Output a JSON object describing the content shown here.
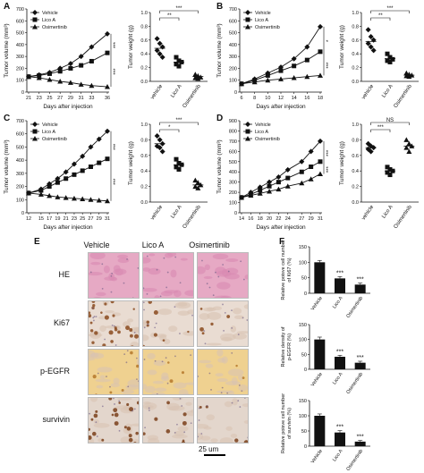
{
  "panels": {
    "A": {
      "label": "A"
    },
    "B": {
      "label": "B"
    },
    "C": {
      "label": "C"
    },
    "D": {
      "label": "D"
    },
    "E": {
      "label": "E"
    },
    "F": {
      "label": "F"
    }
  },
  "legend": [
    "Vehicle",
    "Lico A",
    "Osimertinib"
  ],
  "tumor_volume_ylabel": "Tumor volume (mm³)",
  "tumor_weight_ylabel": "Tumor weight (g)",
  "days_xlabel": "Days after injection",
  "groups_a": [
    "vehicle",
    "Lico A",
    "Osimertinib"
  ],
  "ihc": {
    "columns": [
      "Vehicle",
      "Lico A",
      "Osimertinib"
    ],
    "rows": [
      "HE",
      "Ki67",
      "p-EGFR",
      "survivin"
    ],
    "scale_bar": "25 um",
    "colors": {
      "he": "#e6a9c4",
      "ki67": "#e9dcd2",
      "pegfr": "#efd190",
      "surv": "#e3d6cc"
    }
  },
  "chart_data": [
    {
      "id": "A-line",
      "type": "line",
      "x": [
        21,
        23,
        25,
        27,
        29,
        31,
        33,
        36
      ],
      "xticks": [
        21,
        23,
        25,
        27,
        29,
        31,
        33,
        36
      ],
      "ylim": [
        0,
        700
      ],
      "yticks": [
        0,
        100,
        200,
        300,
        400,
        500,
        600,
        700
      ],
      "xlabel": "Days after injection",
      "ylabel": "Tumor volume (mm³)",
      "series": [
        {
          "name": "Vehicle",
          "marker": "diamond",
          "values": [
            130,
            145,
            165,
            200,
            240,
            300,
            380,
            490
          ]
        },
        {
          "name": "Lico A",
          "marker": "square",
          "values": [
            130,
            140,
            155,
            175,
            200,
            225,
            260,
            330
          ]
        },
        {
          "name": "Osimertinib",
          "marker": "triangle",
          "values": [
            130,
            120,
            105,
            90,
            80,
            65,
            55,
            45
          ]
        }
      ],
      "significance": [
        "***",
        "***"
      ]
    },
    {
      "id": "A-dot",
      "type": "scatter",
      "categories": [
        "vehicle",
        "Lico A",
        "Osimertinib"
      ],
      "ylim": [
        0,
        1.0
      ],
      "yticks": [
        0,
        0.2,
        0.4,
        0.6,
        0.8,
        1.0
      ],
      "ylabel": "Tumor weight (g)",
      "points": [
        [
          0.62,
          0.55,
          0.5,
          0.45,
          0.4,
          0.35
        ],
        [
          0.35,
          0.3,
          0.28,
          0.25,
          0.22
        ],
        [
          0.1,
          0.08,
          0.06,
          0.05,
          0.04
        ]
      ],
      "means": [
        0.48,
        0.28,
        0.07
      ],
      "brackets": [
        {
          "from": 0,
          "to": 1,
          "label": "**"
        },
        {
          "from": 0,
          "to": 2,
          "label": "***"
        }
      ]
    },
    {
      "id": "B-line",
      "type": "line",
      "x": [
        6,
        8,
        10,
        12,
        14,
        16,
        18
      ],
      "xticks": [
        6,
        8,
        10,
        12,
        14,
        16,
        18
      ],
      "ylim": [
        0,
        700
      ],
      "yticks": [
        0,
        100,
        200,
        300,
        400,
        500,
        600,
        700
      ],
      "xlabel": "Days after injection",
      "ylabel": "Tumor volume (mm³)",
      "series": [
        {
          "name": "Vehicle",
          "marker": "diamond",
          "values": [
            70,
            110,
            160,
            210,
            280,
            380,
            550
          ]
        },
        {
          "name": "Lico A",
          "marker": "square",
          "values": [
            70,
            100,
            140,
            180,
            220,
            270,
            340
          ]
        },
        {
          "name": "Osimertinib",
          "marker": "triangle",
          "values": [
            70,
            85,
            100,
            110,
            120,
            130,
            140
          ]
        }
      ],
      "significance": [
        "*",
        "***"
      ]
    },
    {
      "id": "B-dot",
      "type": "scatter",
      "categories": [
        "vehicle",
        "Lico A",
        "Osimertinib"
      ],
      "ylim": [
        0,
        1.0
      ],
      "yticks": [
        0,
        0.2,
        0.4,
        0.6,
        0.8,
        1.0
      ],
      "ylabel": "Tumor weight (g)",
      "points": [
        [
          0.75,
          0.65,
          0.6,
          0.55,
          0.5,
          0.45
        ],
        [
          0.4,
          0.35,
          0.32,
          0.3,
          0.28
        ],
        [
          0.12,
          0.1,
          0.09,
          0.08,
          0.07
        ]
      ],
      "means": [
        0.58,
        0.33,
        0.09
      ],
      "brackets": [
        {
          "from": 0,
          "to": 1,
          "label": "**"
        },
        {
          "from": 0,
          "to": 2,
          "label": "***"
        }
      ]
    },
    {
      "id": "C-line",
      "type": "line",
      "x": [
        12,
        15,
        17,
        19,
        21,
        23,
        25,
        27,
        29,
        31
      ],
      "xticks": [
        12,
        15,
        17,
        19,
        21,
        23,
        25,
        27,
        29,
        31
      ],
      "ylim": [
        0,
        700
      ],
      "yticks": [
        0,
        100,
        200,
        300,
        400,
        500,
        600,
        700
      ],
      "xlabel": "Days after injection",
      "ylabel": "Tumor volume (mm³)",
      "series": [
        {
          "name": "Vehicle",
          "marker": "diamond",
          "values": [
            150,
            180,
            220,
            260,
            310,
            370,
            430,
            500,
            560,
            620
          ]
        },
        {
          "name": "Lico A",
          "marker": "square",
          "values": [
            150,
            170,
            200,
            230,
            260,
            290,
            320,
            350,
            380,
            410
          ]
        },
        {
          "name": "Osimertinib",
          "marker": "triangle",
          "values": [
            150,
            140,
            130,
            120,
            115,
            110,
            105,
            100,
            95,
            90
          ]
        }
      ],
      "significance": [
        "***",
        "***"
      ]
    },
    {
      "id": "C-dot",
      "type": "scatter",
      "categories": [
        "vehicle",
        "Lico A",
        "Osimertinib"
      ],
      "ylim": [
        0,
        1.0
      ],
      "yticks": [
        0,
        0.2,
        0.4,
        0.6,
        0.8,
        1.0
      ],
      "ylabel": "Tumor weight (g)",
      "points": [
        [
          0.85,
          0.8,
          0.75,
          0.72,
          0.7,
          0.65
        ],
        [
          0.55,
          0.5,
          0.48,
          0.45,
          0.42
        ],
        [
          0.28,
          0.25,
          0.22,
          0.2,
          0.18
        ]
      ],
      "means": [
        0.75,
        0.48,
        0.22
      ],
      "brackets": [
        {
          "from": 0,
          "to": 1,
          "label": "*"
        },
        {
          "from": 0,
          "to": 2,
          "label": "***"
        }
      ]
    },
    {
      "id": "D-line",
      "type": "line",
      "x": [
        14,
        16,
        18,
        20,
        22,
        24,
        27,
        29,
        31
      ],
      "xticks": [
        14,
        16,
        18,
        20,
        22,
        24,
        27,
        29,
        31
      ],
      "ylim": [
        0,
        900
      ],
      "yticks": [
        0,
        100,
        200,
        300,
        400,
        500,
        600,
        700,
        800,
        900
      ],
      "xlabel": "Days after injection",
      "ylabel": "Tumor volume (mm³)",
      "series": [
        {
          "name": "Vehicle",
          "marker": "diamond",
          "values": [
            150,
            200,
            250,
            300,
            350,
            420,
            500,
            600,
            700
          ]
        },
        {
          "name": "Lico A",
          "marker": "square",
          "values": [
            150,
            180,
            220,
            260,
            300,
            340,
            400,
            450,
            500
          ]
        },
        {
          "name": "Osimertinib",
          "marker": "triangle",
          "values": [
            150,
            170,
            190,
            210,
            230,
            260,
            290,
            330,
            380
          ]
        }
      ],
      "significance": [
        "***",
        "***"
      ]
    },
    {
      "id": "D-dot",
      "type": "scatter",
      "categories": [
        "vehicle",
        "Lico A",
        "Osimertinib"
      ],
      "ylim": [
        0,
        1.0
      ],
      "yticks": [
        0,
        0.2,
        0.4,
        0.6,
        0.8,
        1.0
      ],
      "ylabel": "Tumor weight (g)",
      "points": [
        [
          0.75,
          0.72,
          0.7,
          0.68,
          0.65
        ],
        [
          0.45,
          0.42,
          0.4,
          0.38,
          0.35
        ],
        [
          0.8,
          0.75,
          0.72,
          0.7,
          0.65
        ]
      ],
      "means": [
        0.7,
        0.4,
        0.72
      ],
      "brackets": [
        {
          "from": 0,
          "to": 1,
          "label": "***"
        },
        {
          "from": 0,
          "to": 2,
          "label": "NS"
        }
      ]
    },
    {
      "id": "F-bar1",
      "type": "bar",
      "categories": [
        "Vehicle",
        "Lico A",
        "Osimertinib"
      ],
      "values": [
        100,
        48,
        28
      ],
      "errors": [
        6,
        6,
        5
      ],
      "ylim": [
        0,
        150
      ],
      "yticks": [
        0,
        50,
        100,
        150
      ],
      "ylabel": "Relative poisve cell number of Ki67 (%)",
      "significance": [
        "",
        "***",
        "***"
      ]
    },
    {
      "id": "F-bar2",
      "type": "bar",
      "categories": [
        "Vehicle",
        "Lico A",
        "Osimertinib"
      ],
      "values": [
        100,
        42,
        22
      ],
      "errors": [
        8,
        5,
        5
      ],
      "ylim": [
        0,
        150
      ],
      "yticks": [
        0,
        50,
        100,
        150
      ],
      "ylabel": "Relative density of p-EGFR (%)",
      "significance": [
        "",
        "***",
        "***"
      ]
    },
    {
      "id": "F-bar3",
      "type": "bar",
      "categories": [
        "Vehicle",
        "Lico A",
        "Osimertinib"
      ],
      "values": [
        100,
        45,
        15
      ],
      "errors": [
        6,
        6,
        4
      ],
      "ylim": [
        0,
        150
      ],
      "yticks": [
        0,
        50,
        100,
        150
      ],
      "ylabel": "Relative poisve cell number of survivin (%)",
      "significance": [
        "",
        "***",
        "***"
      ]
    }
  ]
}
